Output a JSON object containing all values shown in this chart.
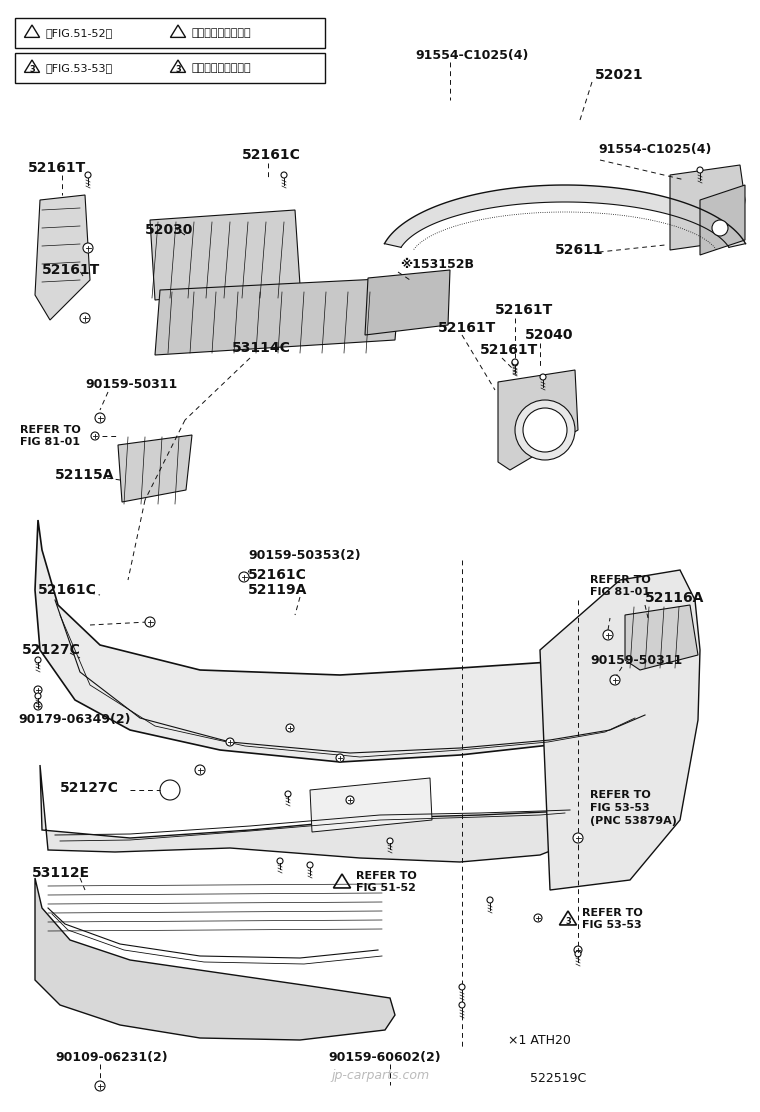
{
  "bg_color": "#ffffff",
  "line_color": "#111111",
  "text_color": "#111111",
  "fig_width": 7.6,
  "fig_height": 11.12,
  "watermark": "jp-carparts.com",
  "diagram_id": "522519C",
  "note1": "×1 ATH20"
}
